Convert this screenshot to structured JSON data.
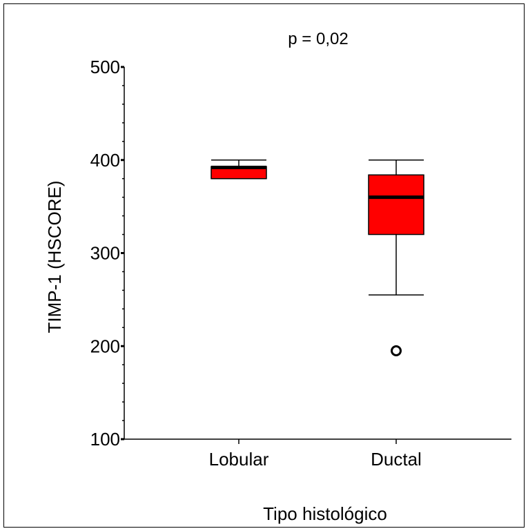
{
  "chart_data": {
    "type": "box",
    "annotation": "p = 0,02",
    "xlabel": "Tipo histológico",
    "ylabel": "TIMP-1 (HSCORE)",
    "ylim": [
      100,
      500
    ],
    "yticks": [
      100,
      200,
      300,
      400,
      500
    ],
    "categories": [
      "Lobular",
      "Ductal"
    ],
    "boxes": [
      {
        "category": "Lobular",
        "whisker_low": 380,
        "q1": 380,
        "median": 392,
        "q3": 393,
        "whisker_high": 400,
        "outliers": []
      },
      {
        "category": "Ductal",
        "whisker_low": 255,
        "q1": 320,
        "median": 360,
        "q3": 384,
        "whisker_high": 400,
        "outliers": [
          195
        ]
      }
    ],
    "colors": {
      "box_fill": "#ff0000",
      "stroke": "#000000"
    }
  }
}
